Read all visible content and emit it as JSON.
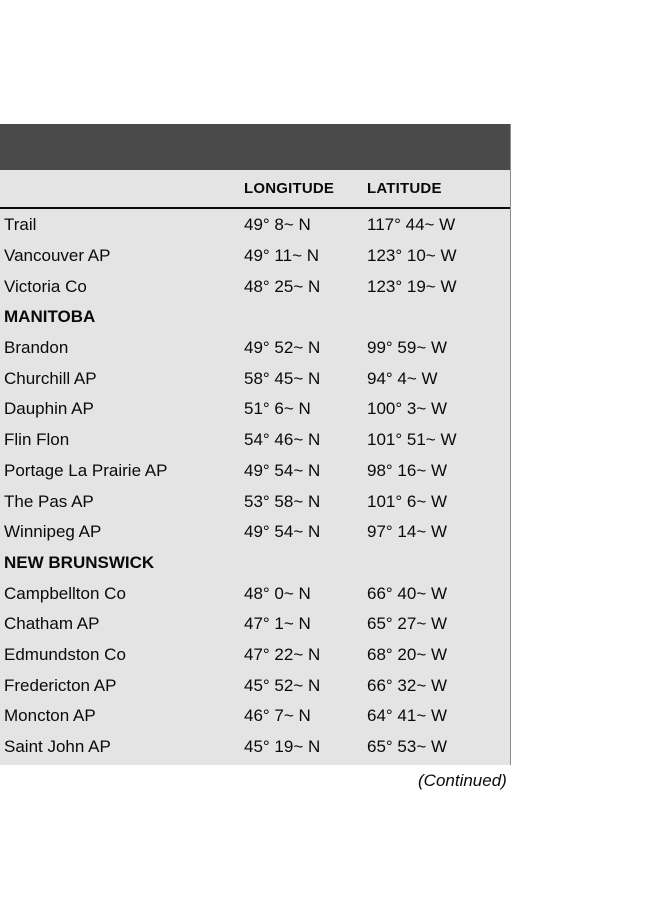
{
  "table": {
    "columns": [
      "LONGITUDE",
      "LATITUDE"
    ],
    "rows": [
      {
        "kind": "data",
        "name": "Trail",
        "longitude": "49° 8~ N",
        "latitude": "117° 44~ W"
      },
      {
        "kind": "data",
        "name": "Vancouver AP",
        "longitude": "49° 11~ N",
        "latitude": "123° 10~ W"
      },
      {
        "kind": "data",
        "name": "Victoria Co",
        "longitude": "48° 25~ N",
        "latitude": "123° 19~ W"
      },
      {
        "kind": "section",
        "name": "MANITOBA"
      },
      {
        "kind": "data",
        "name": "Brandon",
        "longitude": "49° 52~ N",
        "latitude": "99° 59~ W"
      },
      {
        "kind": "data",
        "name": "Churchill AP",
        "longitude": "58° 45~ N",
        "latitude": "94° 4~ W"
      },
      {
        "kind": "data",
        "name": "Dauphin AP",
        "longitude": "51° 6~ N",
        "latitude": "100° 3~ W"
      },
      {
        "kind": "data",
        "name": "Flin Flon",
        "longitude": "54° 46~ N",
        "latitude": "101° 51~ W"
      },
      {
        "kind": "data",
        "name": "Portage La Prairie AP",
        "longitude": "49° 54~ N",
        "latitude": "98° 16~ W"
      },
      {
        "kind": "data",
        "name": "The Pas AP",
        "longitude": "53° 58~ N",
        "latitude": "101° 6~ W"
      },
      {
        "kind": "data",
        "name": "Winnipeg AP",
        "longitude": "49° 54~ N",
        "latitude": "97° 14~ W"
      },
      {
        "kind": "section",
        "name": "NEW BRUNSWICK"
      },
      {
        "kind": "data",
        "name": "Campbellton Co",
        "longitude": "48° 0~ N",
        "latitude": "66° 40~ W"
      },
      {
        "kind": "data",
        "name": "Chatham AP",
        "longitude": "47° 1~ N",
        "latitude": "65° 27~ W"
      },
      {
        "kind": "data",
        "name": "Edmundston Co",
        "longitude": "47° 22~ N",
        "latitude": "68° 20~ W"
      },
      {
        "kind": "data",
        "name": "Fredericton AP",
        "longitude": "45° 52~ N",
        "latitude": "66° 32~ W"
      },
      {
        "kind": "data",
        "name": "Moncton AP",
        "longitude": "46° 7~ N",
        "latitude": "64° 41~ W"
      },
      {
        "kind": "data",
        "name": "Saint John AP",
        "longitude": "45° 19~ N",
        "latitude": "65° 53~ W"
      }
    ]
  },
  "footer": {
    "continued": "(Continued)"
  },
  "colors": {
    "title_bar": "#4a4a4a",
    "table_background": "#e4e4e4",
    "header_rule": "#0a0a0a",
    "right_border": "#8c8c8c"
  }
}
